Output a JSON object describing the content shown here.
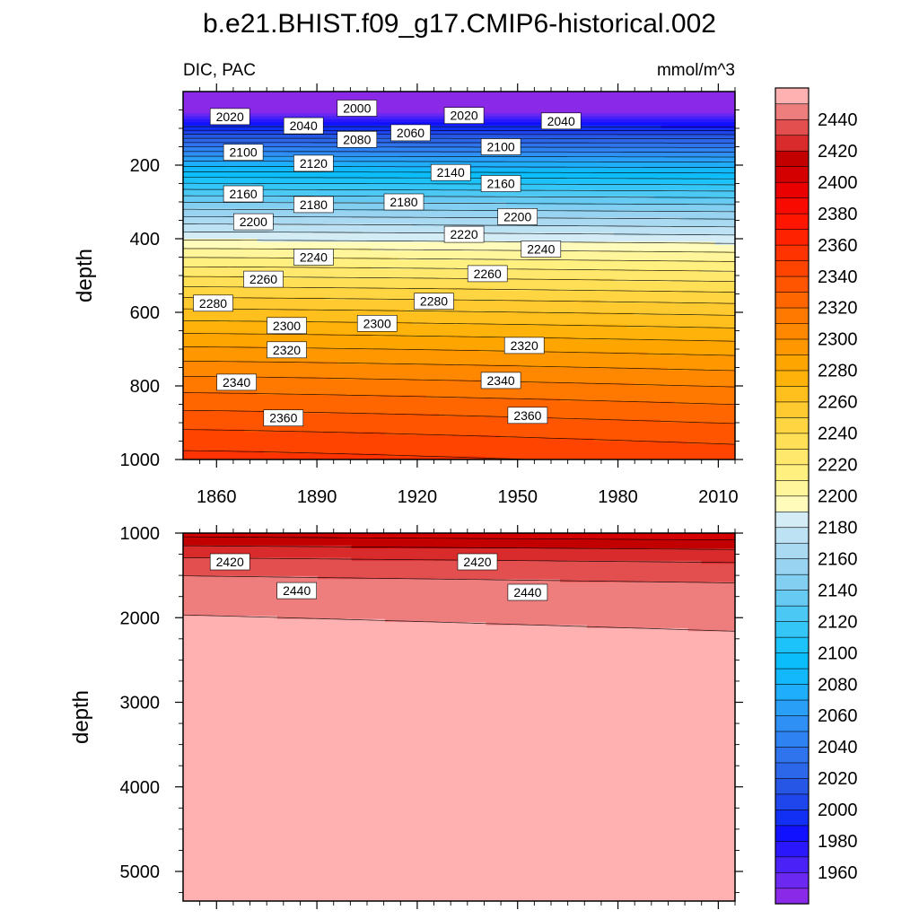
{
  "chart_data": {
    "type": "heatmap",
    "title": "b.e21.BHIST.f09_g17.CMIP6-historical.002",
    "left_label": "DIC, PAC",
    "right_label": "mmol/m^3",
    "xlabel": "",
    "ylabel": "depth",
    "xlim": [
      1850,
      2015
    ],
    "x_ticks": [
      "1860",
      "1890",
      "1920",
      "1950",
      "1980",
      "2010"
    ],
    "upper_panel": {
      "ylim": [
        0,
        1000
      ],
      "y_ticks": [
        "200",
        "400",
        "600",
        "800",
        "1000"
      ],
      "contour_labels": [
        {
          "text": "2020",
          "x": 1864,
          "y": 68
        },
        {
          "text": "2040",
          "x": 1886,
          "y": 93
        },
        {
          "text": "2000",
          "x": 1902,
          "y": 45
        },
        {
          "text": "2020",
          "x": 1934,
          "y": 65
        },
        {
          "text": "2060",
          "x": 1918,
          "y": 112
        },
        {
          "text": "2080",
          "x": 1902,
          "y": 130
        },
        {
          "text": "2040",
          "x": 1963,
          "y": 80
        },
        {
          "text": "2100",
          "x": 1868,
          "y": 165
        },
        {
          "text": "2120",
          "x": 1889,
          "y": 195
        },
        {
          "text": "2100",
          "x": 1945,
          "y": 150
        },
        {
          "text": "2140",
          "x": 1930,
          "y": 220
        },
        {
          "text": "2160",
          "x": 1945,
          "y": 250
        },
        {
          "text": "2160",
          "x": 1868,
          "y": 278
        },
        {
          "text": "2180",
          "x": 1889,
          "y": 307
        },
        {
          "text": "2180",
          "x": 1916,
          "y": 300
        },
        {
          "text": "2200",
          "x": 1950,
          "y": 340
        },
        {
          "text": "2200",
          "x": 1871,
          "y": 354
        },
        {
          "text": "2220",
          "x": 1934,
          "y": 388
        },
        {
          "text": "2240",
          "x": 1889,
          "y": 450
        },
        {
          "text": "2240",
          "x": 1957,
          "y": 428
        },
        {
          "text": "2260",
          "x": 1874,
          "y": 510
        },
        {
          "text": "2260",
          "x": 1941,
          "y": 495
        },
        {
          "text": "2280",
          "x": 1859,
          "y": 575
        },
        {
          "text": "2280",
          "x": 1925,
          "y": 570
        },
        {
          "text": "2300",
          "x": 1881,
          "y": 636
        },
        {
          "text": "2300",
          "x": 1908,
          "y": 630
        },
        {
          "text": "2320",
          "x": 1881,
          "y": 702
        },
        {
          "text": "2320",
          "x": 1952,
          "y": 690
        },
        {
          "text": "2340",
          "x": 1866,
          "y": 790
        },
        {
          "text": "2340",
          "x": 1945,
          "y": 785
        },
        {
          "text": "2360",
          "x": 1880,
          "y": 887
        },
        {
          "text": "2360",
          "x": 1953,
          "y": 880
        }
      ]
    },
    "lower_panel": {
      "ylim": [
        1000,
        5350
      ],
      "y_ticks": [
        "1000",
        "2000",
        "3000",
        "4000",
        "5000"
      ],
      "contour_labels": [
        {
          "text": "2420",
          "x": 1864,
          "y": 1340
        },
        {
          "text": "2420",
          "x": 1938,
          "y": 1340
        },
        {
          "text": "2440",
          "x": 1884,
          "y": 1680
        },
        {
          "text": "2440",
          "x": 1953,
          "y": 1700
        }
      ]
    },
    "colorbar": {
      "levels": [
        1950,
        1960,
        1970,
        1980,
        1990,
        2000,
        2010,
        2020,
        2030,
        2040,
        2050,
        2060,
        2070,
        2080,
        2090,
        2100,
        2110,
        2120,
        2130,
        2140,
        2150,
        2160,
        2170,
        2180,
        2190,
        2200,
        2210,
        2220,
        2230,
        2240,
        2250,
        2260,
        2270,
        2280,
        2290,
        2300,
        2310,
        2320,
        2330,
        2340,
        2350,
        2360,
        2370,
        2380,
        2390,
        2400,
        2410,
        2420,
        2430,
        2440,
        2450
      ],
      "colors": [
        "#8a29e8",
        "#6a28f0",
        "#4a22f7",
        "#2a17fb",
        "#1111ff",
        "#1230f4",
        "#1e46ec",
        "#2656e6",
        "#2d67e9",
        "#2f73ed",
        "#2f82f1",
        "#2e90f5",
        "#2a9ff8",
        "#1eaefb",
        "#12b8fb",
        "#0bbefb",
        "#1cc3fa",
        "#35c6f8",
        "#4cc8f5",
        "#66caf2",
        "#82cff1",
        "#98d3f1",
        "#aad9f2",
        "#bde2f3",
        "#d3ecf5",
        "#fffbbb",
        "#fff59a",
        "#fff080",
        "#ffe86c",
        "#ffdf55",
        "#ffd542",
        "#ffca2f",
        "#ffbf1c",
        "#ffb30a",
        "#ffa500",
        "#ff9800",
        "#ff8800",
        "#ff7800",
        "#ff6600",
        "#ff5500",
        "#ff4400",
        "#ff3300",
        "#ff2200",
        "#ff1500",
        "#f90a00",
        "#ea0000",
        "#d40000",
        "#c20000",
        "#d92b2b",
        "#e34f4f",
        "#ee7e7e",
        "#ffb0b0"
      ],
      "tick_labels": [
        "1960",
        "1980",
        "2000",
        "2020",
        "2040",
        "2060",
        "2080",
        "2100",
        "2120",
        "2140",
        "2160",
        "2180",
        "2200",
        "2220",
        "2240",
        "2260",
        "2280",
        "2300",
        "2320",
        "2340",
        "2360",
        "2380",
        "2400",
        "2420",
        "2440"
      ]
    }
  }
}
